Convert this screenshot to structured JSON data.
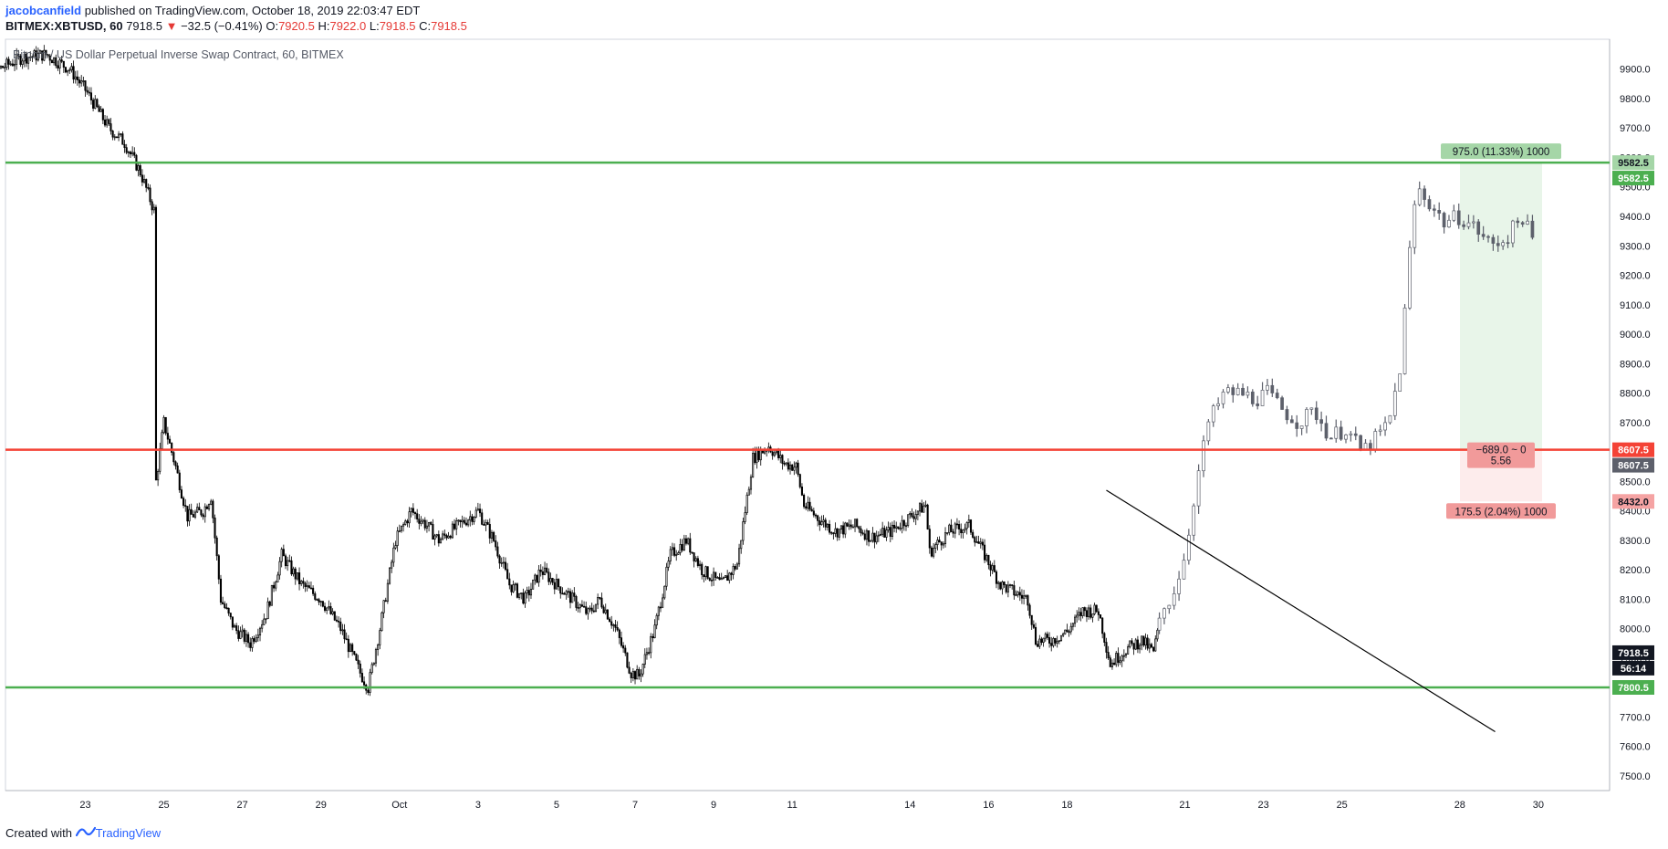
{
  "header": {
    "author": "jacobcanfield",
    "published": " published on TradingView.com, October 18, 2019 22:03:47 EDT",
    "symbol": "BITMEX:XBTUSD, 60",
    "last": "7918.5",
    "change_arrow": "▼",
    "change": "−32.5 (−0.41%)",
    "o_label": "O:",
    "o": "7920.5",
    "h_label": "H:",
    "h": "7922.0",
    "l_label": "L:",
    "l": "7918.5",
    "c_label": "C:",
    "c": "7918.5"
  },
  "footer": {
    "created_with": "Created with",
    "brand": "TradingView"
  },
  "colors": {
    "support_green": "#4caf50",
    "resistance_red": "#f44336",
    "candle_dark": "#000000",
    "candle_gray": "#5d606b",
    "profit_zone": "#e8f5e9",
    "loss_zone": "#fdecec",
    "price_badge": "#131722"
  },
  "chart_data": {
    "type": "candlestick",
    "title": "Bitcoin / US Dollar Perpetual Inverse Swap Contract, 60, BITMEX",
    "interval": "60",
    "x_tick_labels": [
      "23",
      "25",
      "27",
      "29",
      "Oct",
      "3",
      "5",
      "7",
      "9",
      "11",
      "14",
      "16",
      "18",
      "21",
      "23",
      "25",
      "28",
      "30"
    ],
    "y_ticks": [
      7500,
      7600,
      7700,
      7800,
      7900,
      8000,
      8100,
      8200,
      8300,
      8400,
      8500,
      8600,
      8700,
      8800,
      8900,
      9000,
      9100,
      9200,
      9300,
      9400,
      9500,
      9600,
      9700,
      9800,
      9900
    ],
    "y_tick_labels": [
      "7500.0",
      "7600.0",
      "7700.0",
      "7800.0",
      "7900.0",
      "8000.0",
      "8100.0",
      "8200.0",
      "8300.0",
      "8400.0",
      "8500.0",
      "8600.0",
      "8700.0",
      "8800.0",
      "8900.0",
      "9000.0",
      "9100.0",
      "9200.0",
      "9300.0",
      "9400.0",
      "9500.0",
      "9600.0",
      "9700.0",
      "9800.0",
      "9900.0"
    ],
    "ylim": [
      7450,
      9990
    ],
    "price_path": [
      [
        20.0,
        9960
      ],
      [
        20.8,
        9900
      ],
      [
        21.4,
        9940
      ],
      [
        22.0,
        9950
      ],
      [
        22.6,
        9900
      ],
      [
        23.0,
        9830
      ],
      [
        23.6,
        9700
      ],
      [
        24.0,
        9650
      ],
      [
        24.4,
        9550
      ],
      [
        24.75,
        9420
      ],
      [
        24.8,
        8500
      ],
      [
        25.0,
        8700
      ],
      [
        25.3,
        8550
      ],
      [
        25.6,
        8380
      ],
      [
        26.0,
        8400
      ],
      [
        26.2,
        8450
      ],
      [
        26.45,
        8100
      ],
      [
        26.8,
        8000
      ],
      [
        27.2,
        7950
      ],
      [
        27.6,
        8050
      ],
      [
        28.0,
        8250
      ],
      [
        28.5,
        8150
      ],
      [
        29.0,
        8100
      ],
      [
        29.5,
        8000
      ],
      [
        30.0,
        7850
      ],
      [
        30.2,
        7800
      ],
      [
        30.5,
        8000
      ],
      [
        30.9,
        8300
      ],
      [
        31.3,
        8400
      ],
      [
        31.7,
        8350
      ],
      [
        32.0,
        8300
      ],
      [
        32.5,
        8350
      ],
      [
        33.0,
        8400
      ],
      [
        33.4,
        8300
      ],
      [
        33.8,
        8150
      ],
      [
        34.2,
        8100
      ],
      [
        34.6,
        8200
      ],
      [
        35.0,
        8150
      ],
      [
        35.4,
        8100
      ],
      [
        35.8,
        8050
      ],
      [
        36.1,
        8100
      ],
      [
        36.5,
        8000
      ],
      [
        36.9,
        7850
      ],
      [
        37.1,
        7840
      ],
      [
        37.5,
        8000
      ],
      [
        37.9,
        8250
      ],
      [
        38.3,
        8300
      ],
      [
        38.7,
        8200
      ],
      [
        39.2,
        8150
      ],
      [
        39.6,
        8220
      ],
      [
        40.0,
        8580
      ],
      [
        40.4,
        8620
      ],
      [
        40.8,
        8560
      ],
      [
        41.1,
        8550
      ],
      [
        41.3,
        8420
      ],
      [
        41.7,
        8370
      ],
      [
        42.1,
        8330
      ],
      [
        42.6,
        8350
      ],
      [
        43.0,
        8310
      ],
      [
        43.5,
        8330
      ],
      [
        44.0,
        8380
      ],
      [
        44.4,
        8420
      ],
      [
        44.5,
        8260
      ],
      [
        45.0,
        8330
      ],
      [
        45.5,
        8350
      ],
      [
        45.9,
        8250
      ],
      [
        46.3,
        8150
      ],
      [
        46.7,
        8120
      ],
      [
        47.0,
        8100
      ],
      [
        47.2,
        7960
      ],
      [
        47.6,
        7960
      ],
      [
        48.0,
        7990
      ],
      [
        48.4,
        8060
      ],
      [
        48.8,
        8060
      ],
      [
        49.1,
        7880
      ],
      [
        49.5,
        7930
      ],
      [
        49.9,
        7960
      ],
      [
        50.2,
        7920
      ],
      [
        50.4,
        8050
      ],
      [
        50.7,
        8120
      ],
      [
        51.0,
        8250
      ],
      [
        51.3,
        8500
      ],
      [
        51.6,
        8700
      ],
      [
        52.0,
        8800
      ],
      [
        52.4,
        8800
      ],
      [
        52.8,
        8780
      ],
      [
        53.1,
        8800
      ],
      [
        53.5,
        8740
      ],
      [
        53.9,
        8700
      ],
      [
        54.3,
        8740
      ],
      [
        54.7,
        8650
      ],
      [
        55.1,
        8680
      ],
      [
        55.5,
        8600
      ],
      [
        55.9,
        8650
      ],
      [
        56.2,
        8700
      ],
      [
        56.5,
        8900
      ],
      [
        56.7,
        9250
      ],
      [
        56.9,
        9500
      ],
      [
        57.2,
        9450
      ],
      [
        57.6,
        9380
      ],
      [
        58.0,
        9400
      ],
      [
        58.4,
        9360
      ],
      [
        58.8,
        9300
      ],
      [
        59.2,
        9330
      ],
      [
        59.6,
        9400
      ],
      [
        59.9,
        9300
      ]
    ],
    "lines": [
      {
        "name": "top-resistance",
        "price": 9582.5,
        "color": "#4caf50"
      },
      {
        "name": "mid-level",
        "price": 8607.5,
        "color": "#f44336"
      },
      {
        "name": "bottom-support",
        "price": 7800.5,
        "color": "#4caf50"
      }
    ],
    "trendline": {
      "from": [
        49.0,
        8470
      ],
      "to": [
        58.9,
        7650
      ]
    },
    "position": {
      "entry": 8607.5,
      "target": 9582.5,
      "stop": 8432.0,
      "target_label": "975.0 (11.33%) 1000",
      "center_label_1": "−689.0 ~ 0",
      "center_label_2": "5.56",
      "stop_label": "175.5 (2.04%) 1000"
    },
    "price_labels": [
      {
        "text": "9582.5",
        "price": 9582.5,
        "style": "green-light"
      },
      {
        "text": "9582.5",
        "price": 9530,
        "style": "green"
      },
      {
        "text": "8607.5",
        "price": 8607.5,
        "style": "red"
      },
      {
        "text": "8607.5",
        "price": 8555,
        "style": "gray"
      },
      {
        "text": "8432.0",
        "price": 8432.0,
        "style": "pink"
      },
      {
        "text": "7918.5",
        "price": 7918.5,
        "style": "black"
      },
      {
        "text": "56:14",
        "price": 7866,
        "style": "black"
      },
      {
        "text": "7800.5",
        "price": 7800.5,
        "style": "green"
      }
    ]
  }
}
